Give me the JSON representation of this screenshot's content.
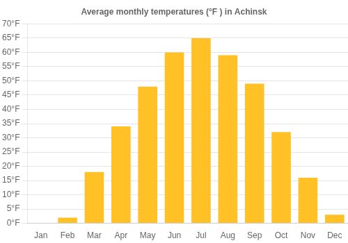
{
  "chart_data": {
    "type": "bar",
    "title": "Average monthly temperatures (°F ) in Achinsk",
    "categories": [
      "Jan",
      "Feb",
      "Mar",
      "Apr",
      "May",
      "Jun",
      "Jul",
      "Aug",
      "Sep",
      "Oct",
      "Nov",
      "Dec"
    ],
    "values": [
      0,
      2,
      18,
      34,
      48,
      60,
      65,
      59,
      49,
      32,
      16,
      3
    ],
    "color": "#FFC125",
    "ylim": [
      0,
      70
    ],
    "yticks": [
      {
        "value": 0,
        "label": "0°F"
      },
      {
        "value": 5,
        "label": "5°F"
      },
      {
        "value": 10,
        "label": "10°F"
      },
      {
        "value": 15,
        "label": "15°F"
      },
      {
        "value": 20,
        "label": "20°F"
      },
      {
        "value": 25,
        "label": "25°F"
      },
      {
        "value": 30,
        "label": "30°F"
      },
      {
        "value": 35,
        "label": "35°F"
      },
      {
        "value": 40,
        "label": "40°F"
      },
      {
        "value": 45,
        "label": "45°F"
      },
      {
        "value": 50,
        "label": "50°F"
      },
      {
        "value": 55,
        "label": "55°F"
      },
      {
        "value": 60,
        "label": "60°F"
      },
      {
        "value": 65,
        "label": "65°F"
      },
      {
        "value": 70,
        "label": "70°F"
      }
    ],
    "grid": true
  }
}
